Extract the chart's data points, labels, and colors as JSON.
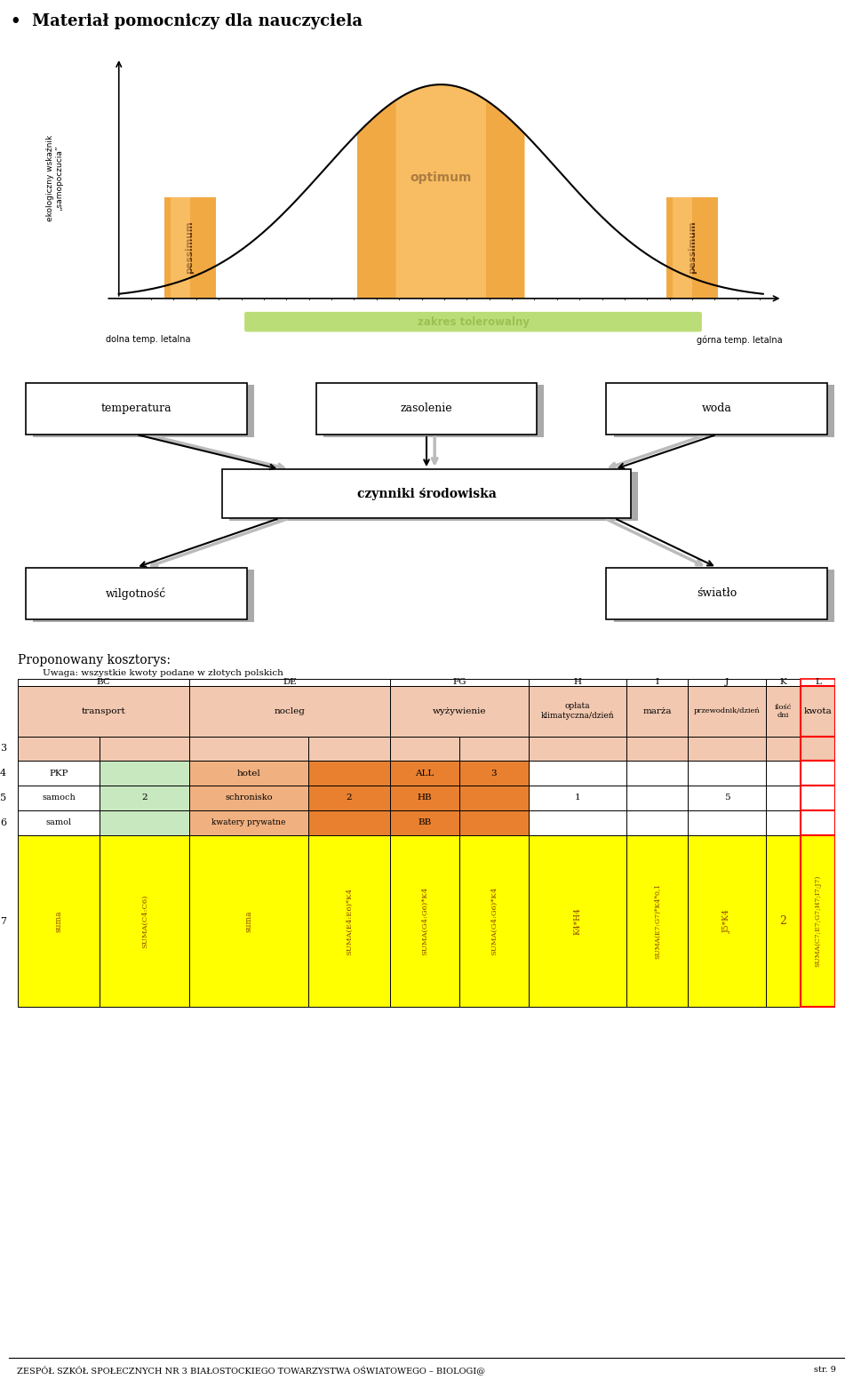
{
  "title": "Materiał pomocniczy dla nauczyciela",
  "bg_color": "#ffffff",
  "chart_bg": "#dde8ee",
  "footer_text": "ZESPÓŁ SZKÓŁ SPOŁECZNYCH NR 3 BIAŁOSTOCKIEGO TOWARZYSTWA OŚWIATOWEGO – BIOLOGI@",
  "footer_right": "str. 9",
  "table_header_color": "#f2c8b0",
  "table_yellow": "#ffff00",
  "table_green_light": "#c8e8c0",
  "table_orange_light": "#f0b080",
  "table_orange_medium": "#e88030"
}
